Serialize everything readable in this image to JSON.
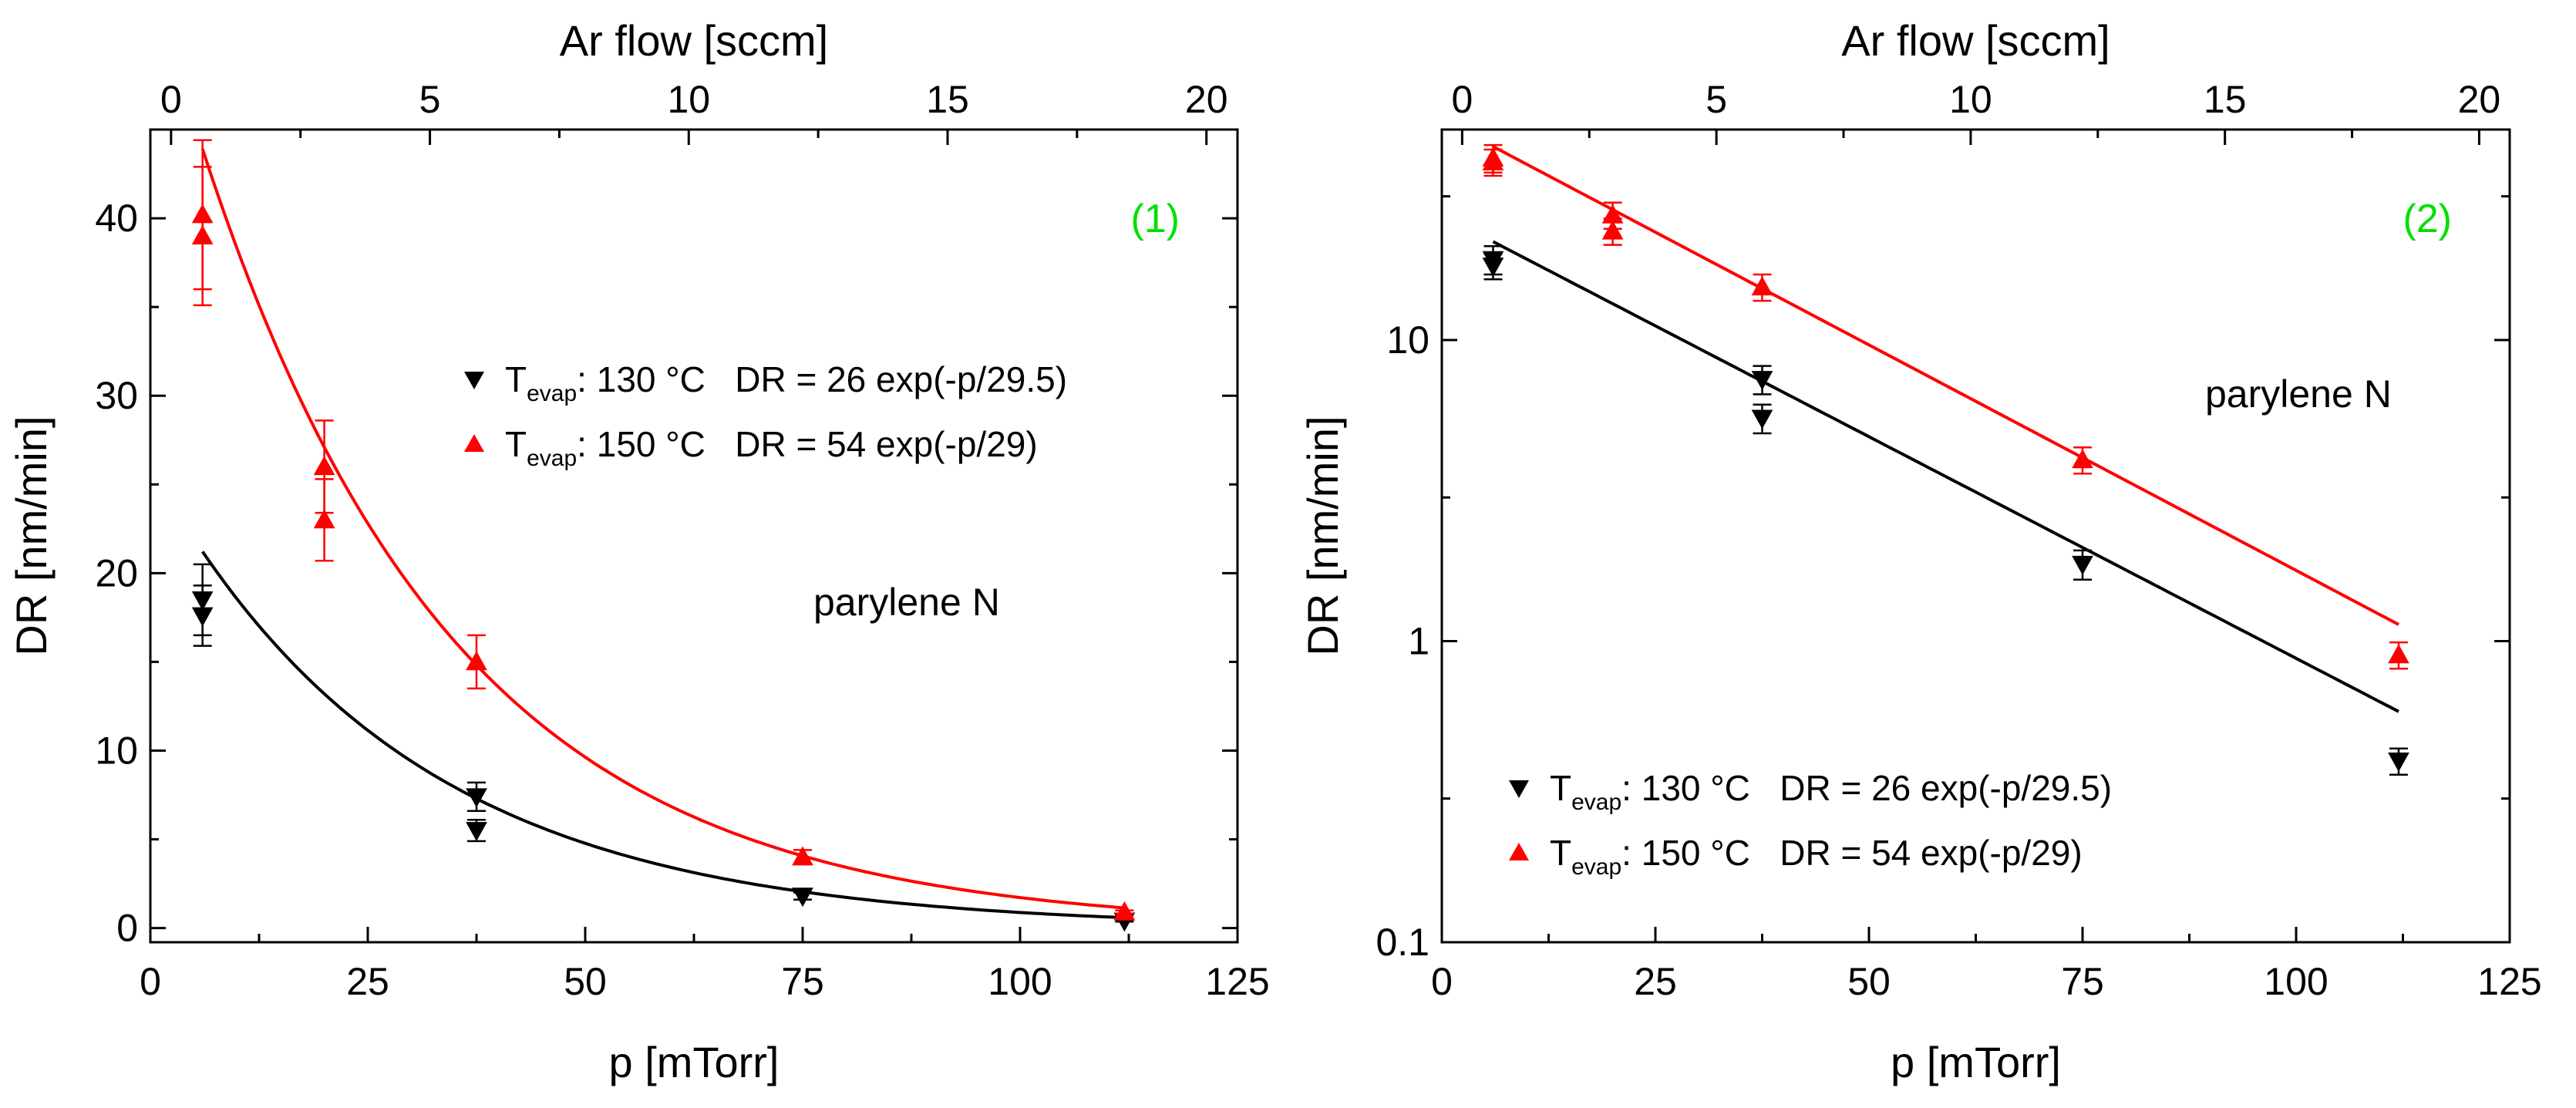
{
  "colors": {
    "series_130": "#000000",
    "series_150": "#ff0000",
    "panel_label": "#00e000"
  },
  "chart_data": [
    {
      "type": "scatter",
      "panel_label": "(1)",
      "annotation": "parylene N",
      "xlabel": "p [mTorr]",
      "ylabel": "DR [nm/min]",
      "top_xlabel": "Ar flow [sccm]",
      "yscale": "linear",
      "xlim": [
        0,
        125
      ],
      "ylim": [
        -0.8,
        45
      ],
      "top_xlim": [
        -0.4,
        20.6
      ],
      "xticks": [
        0,
        25,
        50,
        75,
        100,
        125
      ],
      "xtick_labels": [
        "0",
        "25",
        "50",
        "75",
        "100",
        "125"
      ],
      "yticks": [
        0,
        10,
        20,
        30,
        40
      ],
      "ytick_labels": [
        "0",
        "10",
        "20",
        "30",
        "40"
      ],
      "top_xticks": [
        0,
        5,
        10,
        15,
        20
      ],
      "top_xtick_labels": [
        "0",
        "5",
        "10",
        "15",
        "20"
      ],
      "legend_position": "middle",
      "series": [
        {
          "name": "130",
          "legend_sub": "evap",
          "legend_rest": ": 130 °C   DR = 26 exp(-p/29.5)",
          "marker": "triangle-down",
          "color": "#000000",
          "fit": {
            "amplitude": 26,
            "decay": 29.5,
            "x_range": [
              6,
              112
            ]
          },
          "points": [
            {
              "x": 6,
              "y": 18.5,
              "err": 2
            },
            {
              "x": 6,
              "y": 17.6,
              "err": 1.7
            },
            {
              "x": 37.5,
              "y": 7.4,
              "err": 0.8
            },
            {
              "x": 37.5,
              "y": 5.5,
              "err": 0.6
            },
            {
              "x": 75,
              "y": 1.8,
              "err": 0.2
            },
            {
              "x": 112,
              "y": 0.4,
              "err": 0.04
            }
          ]
        },
        {
          "name": "150",
          "legend_sub": "evap",
          "legend_rest": ": 150 °C   DR = 54 exp(-p/29)",
          "marker": "triangle-up",
          "color": "#ff0000",
          "fit": {
            "amplitude": 54,
            "decay": 29,
            "x_range": [
              6,
              112
            ]
          },
          "points": [
            {
              "x": 6,
              "y": 40.2,
              "err": 4.2
            },
            {
              "x": 6,
              "y": 39,
              "err": 3.9
            },
            {
              "x": 20,
              "y": 26,
              "err": 2.6
            },
            {
              "x": 20,
              "y": 23,
              "err": 2.3
            },
            {
              "x": 37.5,
              "y": 15,
              "err": 1.5
            },
            {
              "x": 75,
              "y": 4,
              "err": 0.4
            },
            {
              "x": 112,
              "y": 0.9,
              "err": 0.09
            }
          ]
        }
      ]
    },
    {
      "type": "scatter",
      "panel_label": "(2)",
      "annotation": "parylene N",
      "xlabel": "p [mTorr]",
      "ylabel": "DR [nm/min]",
      "top_xlabel": "Ar flow [sccm]",
      "yscale": "log",
      "xlim": [
        0,
        125
      ],
      "ylim": [
        0.1,
        50
      ],
      "top_xlim": [
        -0.4,
        20.6
      ],
      "xticks": [
        0,
        25,
        50,
        75,
        100,
        125
      ],
      "xtick_labels": [
        "0",
        "25",
        "50",
        "75",
        "100",
        "125"
      ],
      "yticks": [
        0.1,
        1,
        10
      ],
      "ytick_labels": [
        "0.1",
        "1",
        "10"
      ],
      "top_xticks": [
        0,
        5,
        10,
        15,
        20
      ],
      "top_xtick_labels": [
        "0",
        "5",
        "10",
        "15",
        "20"
      ],
      "legend_position": "bottom-left",
      "series": [
        {
          "name": "130",
          "legend_sub": "evap",
          "legend_rest": ": 130 °C   DR = 26 exp(-p/29.5)",
          "marker": "triangle-down",
          "color": "#000000",
          "fit": {
            "amplitude": 26,
            "decay": 29.5,
            "x_range": [
              6,
              112
            ]
          },
          "points": [
            {
              "x": 6,
              "y": 18.5,
              "err": 2
            },
            {
              "x": 6,
              "y": 17.6,
              "err": 1.7
            },
            {
              "x": 37.5,
              "y": 7.4,
              "err": 0.8
            },
            {
              "x": 37.5,
              "y": 5.5,
              "err": 0.6
            },
            {
              "x": 75,
              "y": 1.8,
              "err": 0.2
            },
            {
              "x": 112,
              "y": 0.4,
              "err": 0.04
            }
          ]
        },
        {
          "name": "150",
          "legend_sub": "evap",
          "legend_rest": ": 150 °C   DR = 54 exp(-p/29)",
          "marker": "triangle-up",
          "color": "#ff0000",
          "fit": {
            "amplitude": 54,
            "decay": 29,
            "x_range": [
              6,
              112
            ]
          },
          "points": [
            {
              "x": 6,
              "y": 40.2,
              "err": 4.2
            },
            {
              "x": 6,
              "y": 39,
              "err": 3.9
            },
            {
              "x": 20,
              "y": 26,
              "err": 2.6
            },
            {
              "x": 20,
              "y": 23,
              "err": 2.3
            },
            {
              "x": 37.5,
              "y": 15,
              "err": 1.5
            },
            {
              "x": 75,
              "y": 4,
              "err": 0.4
            },
            {
              "x": 112,
              "y": 0.9,
              "err": 0.09
            }
          ]
        }
      ]
    }
  ]
}
